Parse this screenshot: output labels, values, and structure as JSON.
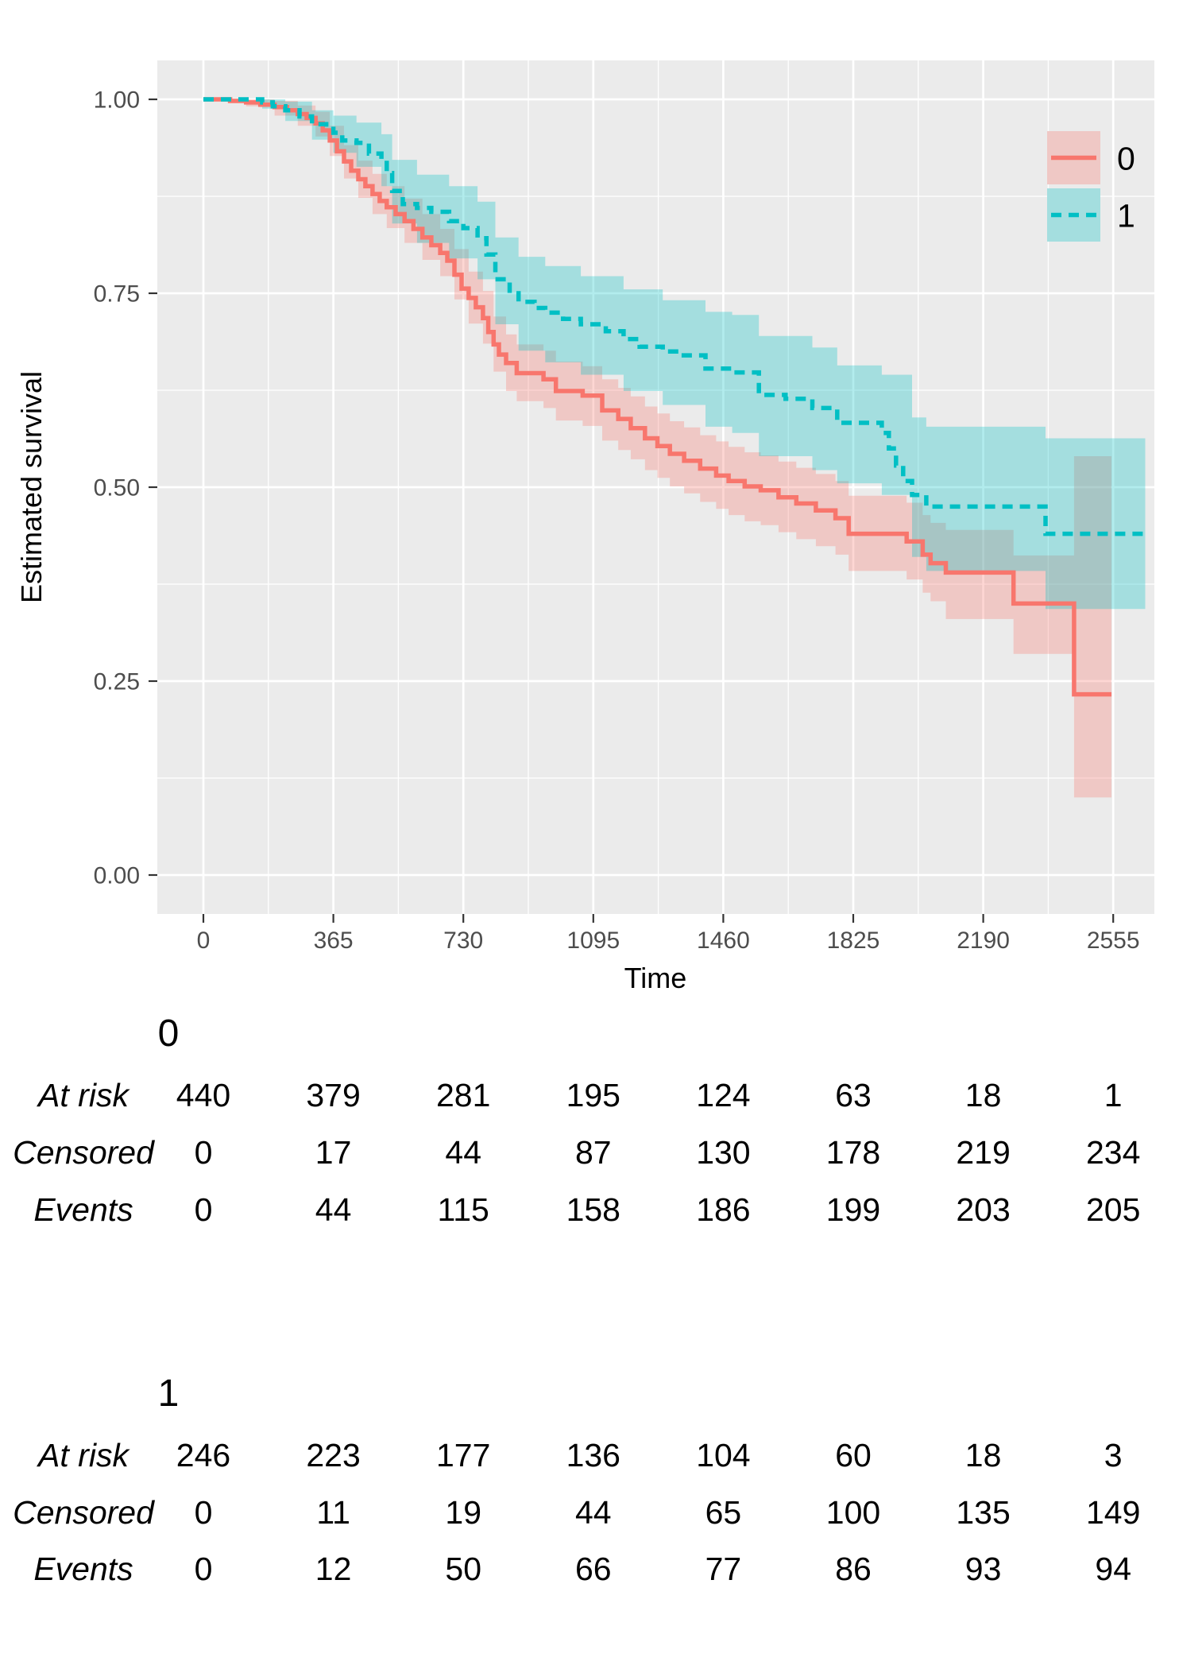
{
  "chart_data": {
    "type": "line",
    "subtype": "kaplan-meier-step",
    "title": "",
    "xlabel": "Time",
    "ylabel": "Estimated survival",
    "x_ticks": [
      0,
      365,
      730,
      1095,
      1460,
      1825,
      2190,
      2555
    ],
    "y_ticks": [
      0,
      0.25,
      0.5,
      0.75,
      1
    ],
    "y_tick_labels": [
      "0.00",
      "0.25",
      "0.50",
      "0.75",
      "1.00"
    ],
    "xlim": [
      -129,
      2671
    ],
    "ylim": [
      -0.05,
      1.05
    ],
    "grid": "white major and minor gridlines on gray panel",
    "legend_position": "inside-top-right",
    "colors": {
      "panel_bg": "#EBEBEB",
      "grid": "#FFFFFF",
      "tick_label": "#4D4D4D",
      "tick_mark": "#333333",
      "axis_title": "#000000",
      "table_text": "#000000"
    },
    "band_alpha": 0.3,
    "series": [
      {
        "name": "0",
        "color": "#F8766D",
        "dash": "solid",
        "end": 2550,
        "steps": [
          [
            0,
            1.0
          ],
          [
            75,
            0.998
          ],
          [
            120,
            0.996
          ],
          [
            160,
            0.993
          ],
          [
            200,
            0.99
          ],
          [
            235,
            0.986
          ],
          [
            265,
            0.981
          ],
          [
            290,
            0.976
          ],
          [
            315,
            0.969
          ],
          [
            335,
            0.96
          ],
          [
            355,
            0.947
          ],
          [
            375,
            0.933
          ],
          [
            395,
            0.92
          ],
          [
            415,
            0.908
          ],
          [
            435,
            0.897
          ],
          [
            455,
            0.888
          ],
          [
            475,
            0.878
          ],
          [
            495,
            0.869
          ],
          [
            515,
            0.861
          ],
          [
            540,
            0.852
          ],
          [
            565,
            0.843
          ],
          [
            590,
            0.833
          ],
          [
            615,
            0.822
          ],
          [
            640,
            0.812
          ],
          [
            665,
            0.802
          ],
          [
            685,
            0.792
          ],
          [
            705,
            0.774
          ],
          [
            725,
            0.756
          ],
          [
            745,
            0.744
          ],
          [
            765,
            0.732
          ],
          [
            785,
            0.718
          ],
          [
            800,
            0.7
          ],
          [
            815,
            0.684
          ],
          [
            830,
            0.671
          ],
          [
            850,
            0.66
          ],
          [
            880,
            0.647
          ],
          [
            955,
            0.639
          ],
          [
            990,
            0.624
          ],
          [
            1065,
            0.618
          ],
          [
            1120,
            0.599
          ],
          [
            1165,
            0.588
          ],
          [
            1200,
            0.576
          ],
          [
            1240,
            0.563
          ],
          [
            1275,
            0.553
          ],
          [
            1310,
            0.543
          ],
          [
            1350,
            0.534
          ],
          [
            1395,
            0.524
          ],
          [
            1440,
            0.515
          ],
          [
            1475,
            0.508
          ],
          [
            1520,
            0.501
          ],
          [
            1565,
            0.496
          ],
          [
            1615,
            0.487
          ],
          [
            1665,
            0.479
          ],
          [
            1720,
            0.47
          ],
          [
            1775,
            0.46
          ],
          [
            1812,
            0.44
          ],
          [
            1975,
            0.43
          ],
          [
            2020,
            0.413
          ],
          [
            2042,
            0.402
          ],
          [
            2085,
            0.39
          ],
          [
            2275,
            0.35
          ],
          [
            2445,
            0.233
          ]
        ],
        "ci": [
          [
            0,
            1.0,
            1.0
          ],
          [
            120,
            0.991,
            1.0
          ],
          [
            200,
            0.979,
            0.998
          ],
          [
            265,
            0.966,
            0.992
          ],
          [
            315,
            0.952,
            0.984
          ],
          [
            355,
            0.927,
            0.966
          ],
          [
            395,
            0.898,
            0.941
          ],
          [
            435,
            0.873,
            0.921
          ],
          [
            475,
            0.852,
            0.904
          ],
          [
            515,
            0.834,
            0.888
          ],
          [
            565,
            0.815,
            0.872
          ],
          [
            615,
            0.793,
            0.852
          ],
          [
            665,
            0.772,
            0.833
          ],
          [
            705,
            0.742,
            0.807
          ],
          [
            745,
            0.711,
            0.778
          ],
          [
            785,
            0.685,
            0.753
          ],
          [
            815,
            0.649,
            0.72
          ],
          [
            850,
            0.624,
            0.697
          ],
          [
            880,
            0.611,
            0.684
          ],
          [
            955,
            0.602,
            0.676
          ],
          [
            990,
            0.586,
            0.662
          ],
          [
            1065,
            0.579,
            0.656
          ],
          [
            1120,
            0.56,
            0.639
          ],
          [
            1165,
            0.548,
            0.628
          ],
          [
            1200,
            0.536,
            0.617
          ],
          [
            1240,
            0.522,
            0.604
          ],
          [
            1275,
            0.512,
            0.595
          ],
          [
            1310,
            0.501,
            0.585
          ],
          [
            1350,
            0.492,
            0.577
          ],
          [
            1395,
            0.481,
            0.567
          ],
          [
            1440,
            0.472,
            0.559
          ],
          [
            1475,
            0.464,
            0.552
          ],
          [
            1520,
            0.456,
            0.545
          ],
          [
            1565,
            0.451,
            0.541
          ],
          [
            1615,
            0.442,
            0.533
          ],
          [
            1665,
            0.433,
            0.525
          ],
          [
            1720,
            0.424,
            0.517
          ],
          [
            1775,
            0.413,
            0.508
          ],
          [
            1812,
            0.392,
            0.489
          ],
          [
            1975,
            0.381,
            0.48
          ],
          [
            2020,
            0.364,
            0.464
          ],
          [
            2042,
            0.353,
            0.454
          ],
          [
            2085,
            0.33,
            0.445
          ],
          [
            2275,
            0.285,
            0.412
          ],
          [
            2445,
            0.1,
            0.54
          ]
        ]
      },
      {
        "name": "1",
        "color": "#00BFC4",
        "dash": "dashed",
        "end": 2645,
        "steps": [
          [
            0,
            1.0
          ],
          [
            165,
            0.996
          ],
          [
            195,
            0.991
          ],
          [
            230,
            0.986
          ],
          [
            270,
            0.978
          ],
          [
            305,
            0.968
          ],
          [
            345,
            0.962
          ],
          [
            365,
            0.957
          ],
          [
            390,
            0.947
          ],
          [
            430,
            0.944
          ],
          [
            465,
            0.93
          ],
          [
            500,
            0.923
          ],
          [
            515,
            0.905
          ],
          [
            530,
            0.882
          ],
          [
            560,
            0.865
          ],
          [
            600,
            0.86
          ],
          [
            640,
            0.855
          ],
          [
            690,
            0.843
          ],
          [
            730,
            0.834
          ],
          [
            770,
            0.821
          ],
          [
            795,
            0.8
          ],
          [
            820,
            0.768
          ],
          [
            860,
            0.75
          ],
          [
            885,
            0.739
          ],
          [
            930,
            0.731
          ],
          [
            960,
            0.725
          ],
          [
            1010,
            0.717
          ],
          [
            1060,
            0.71
          ],
          [
            1130,
            0.701
          ],
          [
            1180,
            0.691
          ],
          [
            1225,
            0.681
          ],
          [
            1290,
            0.675
          ],
          [
            1335,
            0.67
          ],
          [
            1410,
            0.653
          ],
          [
            1485,
            0.648
          ],
          [
            1560,
            0.619
          ],
          [
            1635,
            0.614
          ],
          [
            1710,
            0.602
          ],
          [
            1780,
            0.583
          ],
          [
            1905,
            0.57
          ],
          [
            1925,
            0.55
          ],
          [
            1945,
            0.528
          ],
          [
            1965,
            0.508
          ],
          [
            1990,
            0.49
          ],
          [
            2030,
            0.475
          ],
          [
            2365,
            0.44
          ]
        ],
        "ci": [
          [
            0,
            1.0,
            1.0
          ],
          [
            165,
            0.988,
            1.0
          ],
          [
            230,
            0.972,
            0.997
          ],
          [
            305,
            0.948,
            0.986
          ],
          [
            365,
            0.931,
            0.979
          ],
          [
            430,
            0.913,
            0.97
          ],
          [
            500,
            0.888,
            0.955
          ],
          [
            530,
            0.84,
            0.922
          ],
          [
            600,
            0.815,
            0.903
          ],
          [
            690,
            0.795,
            0.888
          ],
          [
            770,
            0.768,
            0.868
          ],
          [
            820,
            0.71,
            0.822
          ],
          [
            885,
            0.676,
            0.797
          ],
          [
            960,
            0.661,
            0.785
          ],
          [
            1060,
            0.645,
            0.772
          ],
          [
            1180,
            0.624,
            0.755
          ],
          [
            1290,
            0.606,
            0.741
          ],
          [
            1410,
            0.578,
            0.726
          ],
          [
            1485,
            0.57,
            0.722
          ],
          [
            1560,
            0.54,
            0.695
          ],
          [
            1710,
            0.522,
            0.68
          ],
          [
            1780,
            0.505,
            0.657
          ],
          [
            1905,
            0.49,
            0.645
          ],
          [
            1990,
            0.41,
            0.59
          ],
          [
            2030,
            0.392,
            0.578
          ],
          [
            2365,
            0.343,
            0.563
          ]
        ]
      }
    ]
  },
  "legend": {
    "items": [
      {
        "label": "0",
        "color": "#F8766D",
        "dash": "solid"
      },
      {
        "label": "1",
        "color": "#00BFC4",
        "dash": "dashed"
      }
    ]
  },
  "risk_tables": {
    "time_columns": [
      0,
      365,
      730,
      1095,
      1460,
      1825,
      2190,
      2555
    ],
    "groups": [
      {
        "header": "0",
        "rows": [
          {
            "label": "At risk",
            "values": [
              440,
              379,
              281,
              195,
              124,
              63,
              18,
              1
            ]
          },
          {
            "label": "Censored",
            "values": [
              0,
              17,
              44,
              87,
              130,
              178,
              219,
              234
            ]
          },
          {
            "label": "Events",
            "values": [
              0,
              44,
              115,
              158,
              186,
              199,
              203,
              205
            ]
          }
        ]
      },
      {
        "header": "1",
        "rows": [
          {
            "label": "At risk",
            "values": [
              246,
              223,
              177,
              136,
              104,
              60,
              18,
              3
            ]
          },
          {
            "label": "Censored",
            "values": [
              0,
              11,
              19,
              44,
              65,
              100,
              135,
              149
            ]
          },
          {
            "label": "Events",
            "values": [
              0,
              12,
              50,
              66,
              77,
              86,
              93,
              94
            ]
          }
        ]
      }
    ]
  }
}
